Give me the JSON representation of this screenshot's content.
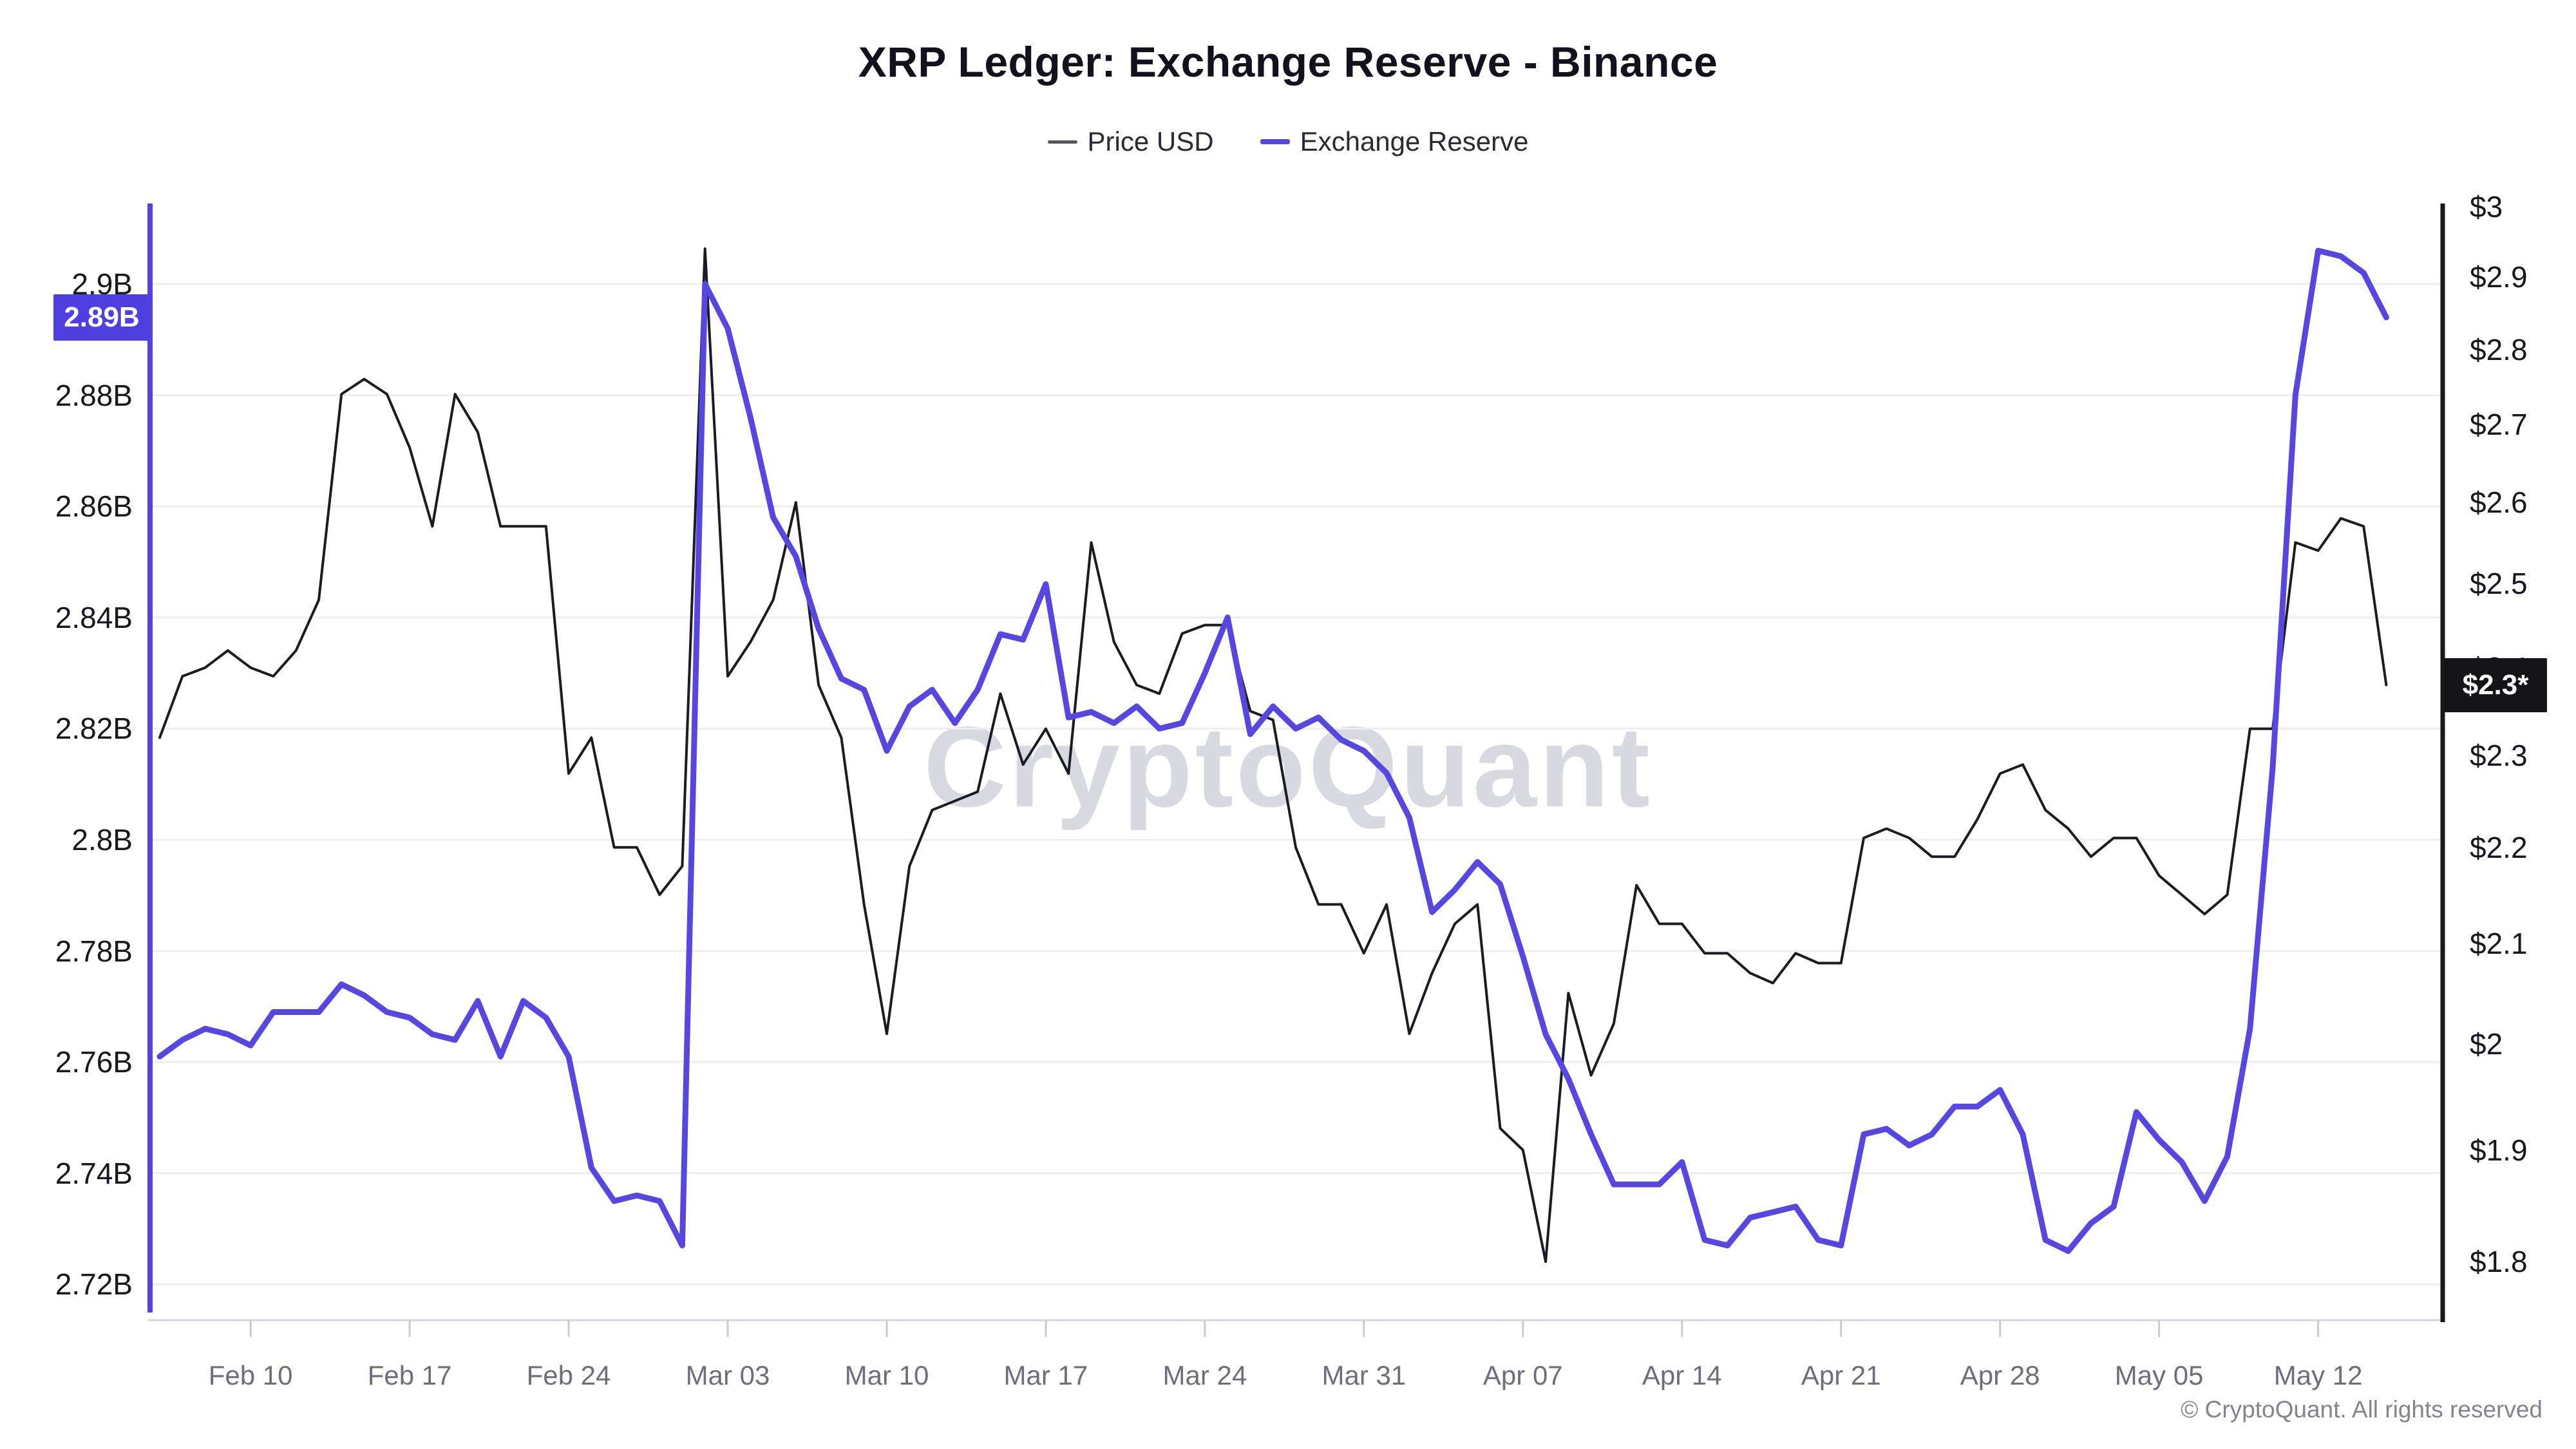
{
  "title": "XRP Ledger: Exchange Reserve - Binance",
  "legend": {
    "price": {
      "label": "Price USD",
      "color": "#55555e"
    },
    "reserve": {
      "label": "Exchange Reserve",
      "color": "#5747e0"
    }
  },
  "watermark": "CryptoQuant",
  "copyright": "© CryptoQuant. All rights reserved",
  "badges": {
    "reserve_last": {
      "text": "2.89B",
      "value": 2.894,
      "bg": "#4f3ee0"
    },
    "price_last": {
      "text": "$2.3*",
      "value": 2.38,
      "bg": "#141418"
    }
  },
  "chart_data": {
    "type": "line",
    "title": "XRP Ledger: Exchange Reserve - Binance",
    "grid": "horizontal",
    "legend_position": "top",
    "x": [
      "Feb 06",
      "Feb 07",
      "Feb 08",
      "Feb 09",
      "Feb 10",
      "Feb 11",
      "Feb 12",
      "Feb 13",
      "Feb 14",
      "Feb 15",
      "Feb 16",
      "Feb 17",
      "Feb 18",
      "Feb 19",
      "Feb 20",
      "Feb 21",
      "Feb 22",
      "Feb 23",
      "Feb 24",
      "Feb 25",
      "Feb 26",
      "Feb 27",
      "Feb 28",
      "Mar 01",
      "Mar 02",
      "Mar 03",
      "Mar 04",
      "Mar 05",
      "Mar 06",
      "Mar 07",
      "Mar 08",
      "Mar 09",
      "Mar 10",
      "Mar 11",
      "Mar 12",
      "Mar 13",
      "Mar 14",
      "Mar 15",
      "Mar 16",
      "Mar 17",
      "Mar 18",
      "Mar 19",
      "Mar 20",
      "Mar 21",
      "Mar 22",
      "Mar 23",
      "Mar 24",
      "Mar 25",
      "Mar 26",
      "Mar 27",
      "Mar 28",
      "Mar 29",
      "Mar 30",
      "Mar 31",
      "Apr 01",
      "Apr 02",
      "Apr 03",
      "Apr 04",
      "Apr 05",
      "Apr 06",
      "Apr 07",
      "Apr 08",
      "Apr 09",
      "Apr 10",
      "Apr 11",
      "Apr 12",
      "Apr 13",
      "Apr 14",
      "Apr 15",
      "Apr 16",
      "Apr 17",
      "Apr 18",
      "Apr 19",
      "Apr 20",
      "Apr 21",
      "Apr 22",
      "Apr 23",
      "Apr 24",
      "Apr 25",
      "Apr 26",
      "Apr 27",
      "Apr 28",
      "Apr 29",
      "Apr 30",
      "May 01",
      "May 02",
      "May 03",
      "May 04",
      "May 05",
      "May 06",
      "May 07",
      "May 08",
      "May 09",
      "May 10",
      "May 11",
      "May 12",
      "May 13",
      "May 14",
      "May 15"
    ],
    "series": [
      {
        "name": "Price USD",
        "axis": "right",
        "color": "#1b1b22",
        "width": 4,
        "values": [
          2.32,
          2.39,
          2.4,
          2.42,
          2.4,
          2.39,
          2.42,
          2.48,
          2.74,
          2.76,
          2.74,
          2.67,
          2.57,
          2.74,
          2.69,
          2.57,
          2.57,
          2.57,
          2.28,
          2.32,
          2.2,
          2.2,
          2.15,
          2.18,
          2.94,
          2.39,
          2.43,
          2.48,
          2.6,
          2.38,
          2.32,
          2.14,
          2.01,
          2.18,
          2.24,
          2.25,
          2.26,
          2.37,
          2.29,
          2.33,
          2.28,
          2.55,
          2.43,
          2.38,
          2.37,
          2.44,
          2.45,
          2.45,
          2.35,
          2.34,
          2.2,
          2.14,
          2.14,
          2.09,
          2.14,
          2.01,
          2.07,
          2.12,
          2.14,
          1.92,
          1.9,
          1.8,
          2.05,
          1.97,
          2.02,
          2.16,
          2.12,
          2.12,
          2.09,
          2.09,
          2.07,
          2.06,
          2.09,
          2.08,
          2.08,
          2.21,
          2.22,
          2.21,
          2.19,
          2.19,
          2.23,
          2.28,
          2.29,
          2.24,
          2.22,
          2.19,
          2.21,
          2.21,
          2.17,
          2.15,
          2.13,
          2.15,
          2.33,
          2.33,
          2.55,
          2.54,
          2.58,
          2.57,
          2.38
        ]
      },
      {
        "name": "Exchange Reserve",
        "axis": "left",
        "color": "#5747e0",
        "width": 9,
        "values": [
          2.761,
          2.764,
          2.766,
          2.765,
          2.763,
          2.769,
          2.769,
          2.769,
          2.774,
          2.772,
          2.769,
          2.768,
          2.765,
          2.764,
          2.771,
          2.761,
          2.771,
          2.768,
          2.761,
          2.741,
          2.735,
          2.736,
          2.735,
          2.727,
          2.9,
          2.892,
          2.876,
          2.858,
          2.851,
          2.838,
          2.829,
          2.827,
          2.816,
          2.824,
          2.827,
          2.821,
          2.827,
          2.837,
          2.836,
          2.846,
          2.822,
          2.823,
          2.821,
          2.824,
          2.82,
          2.821,
          2.83,
          2.84,
          2.819,
          2.824,
          2.82,
          2.822,
          2.818,
          2.816,
          2.812,
          2.804,
          2.787,
          2.791,
          2.796,
          2.792,
          2.779,
          2.765,
          2.757,
          2.747,
          2.738,
          2.738,
          2.738,
          2.742,
          2.728,
          2.727,
          2.732,
          2.733,
          2.734,
          2.728,
          2.727,
          2.747,
          2.748,
          2.745,
          2.747,
          2.752,
          2.752,
          2.755,
          2.747,
          2.728,
          2.726,
          2.731,
          2.734,
          2.751,
          2.746,
          2.742,
          2.735,
          2.743,
          2.766,
          2.813,
          2.88,
          2.906,
          2.905,
          2.902,
          2.894
        ]
      }
    ],
    "axes": {
      "left": {
        "title": "Exchange Reserve",
        "scale": "linear",
        "range_hint": [
          2.71,
          2.915
        ],
        "labels": [
          "2.9B",
          "2.88B",
          "2.86B",
          "2.84B",
          "2.82B",
          "2.8B",
          "2.78B",
          "2.76B",
          "2.74B",
          "2.72B"
        ],
        "values": [
          2.9,
          2.88,
          2.86,
          2.84,
          2.82,
          2.8,
          2.78,
          2.76,
          2.74,
          2.72
        ]
      },
      "right": {
        "title": "Price USD",
        "scale": "log",
        "range_hint": [
          1.75,
          3.0
        ],
        "labels": [
          "$3",
          "$2.9",
          "$2.8",
          "$2.7",
          "$2.6",
          "$2.5",
          "$2.4",
          "$2.3",
          "$2.2",
          "$2.1",
          "$2",
          "$1.9",
          "$1.8"
        ],
        "values": [
          3,
          2.9,
          2.8,
          2.7,
          2.6,
          2.5,
          2.4,
          2.3,
          2.2,
          2.1,
          2,
          1.9,
          1.8
        ]
      },
      "x": {
        "ticks": [
          {
            "label": "Feb 10",
            "i": 4
          },
          {
            "label": "Feb 17",
            "i": 11
          },
          {
            "label": "Feb 24",
            "i": 18
          },
          {
            "label": "Mar 03",
            "i": 25
          },
          {
            "label": "Mar 10",
            "i": 32
          },
          {
            "label": "Mar 17",
            "i": 39
          },
          {
            "label": "Mar 24",
            "i": 46
          },
          {
            "label": "Mar 31",
            "i": 53
          },
          {
            "label": "Apr 07",
            "i": 60
          },
          {
            "label": "Apr 14",
            "i": 67
          },
          {
            "label": "Apr 21",
            "i": 74
          },
          {
            "label": "Apr 28",
            "i": 81
          },
          {
            "label": "May 05",
            "i": 88
          },
          {
            "label": "May 12",
            "i": 95
          }
        ]
      }
    },
    "colors": {
      "gridline": "#eeeef2",
      "left_axis_line": "#5340e6",
      "right_axis_line": "#17171c",
      "bottom_axis_line": "#d6d6dd",
      "tick": "#cacad2"
    }
  }
}
